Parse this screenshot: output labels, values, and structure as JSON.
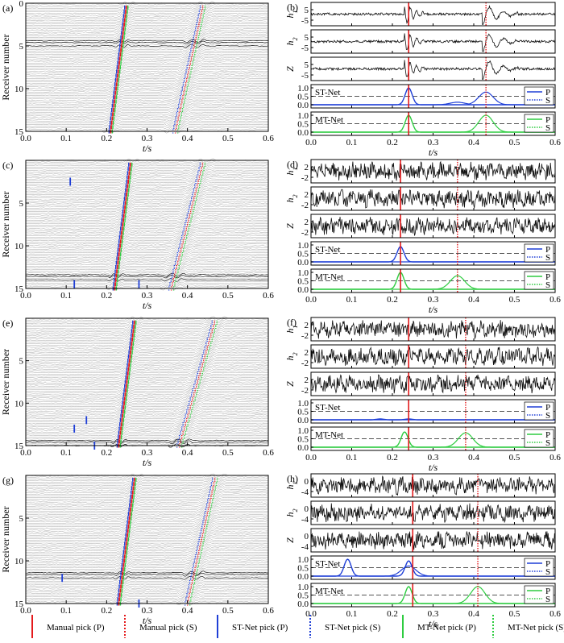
{
  "colors": {
    "manual": "#e41a1c",
    "st": "#1f3fd6",
    "mt": "#2ecc40",
    "threshold": "#555555"
  },
  "legend": [
    {
      "label": "Manual pick (P)",
      "color": "#e41a1c",
      "style": "solid"
    },
    {
      "label": "Manual pick (S)",
      "color": "#e41a1c",
      "style": "dotted"
    },
    {
      "label": "ST-Net pick (P)",
      "color": "#1f3fd6",
      "style": "solid"
    },
    {
      "label": "ST-Net pick (S)",
      "color": "#1f3fd6",
      "style": "dotted"
    },
    {
      "label": "MT-Net pick (P)",
      "color": "#2ecc40",
      "style": "solid"
    },
    {
      "label": "MT-Net pick (S)",
      "color": "#2ecc40",
      "style": "dotted"
    }
  ],
  "chart_data": [
    {
      "panel": "(a)",
      "type": "line",
      "xlabel": "t/s",
      "ylabel": "Receiver number",
      "xlim": [
        0,
        0.6
      ],
      "ylim": [
        15,
        0
      ],
      "xticks": [
        "0.0",
        "0.1",
        "0.2",
        "0.3",
        "0.4",
        "0.5",
        "0.6"
      ],
      "yticks": [
        "0",
        "5",
        "10",
        "15"
      ],
      "receivers": 15,
      "highlight_receivers": [
        4.5,
        5
      ],
      "p_arrival": {
        "top": 0.25,
        "bottom": 0.21
      },
      "s_arrival": {
        "top": 0.44,
        "bottom": 0.37
      },
      "outlier_p": []
    },
    {
      "panel": "(b)",
      "type": "line",
      "xlim": [
        0,
        0.6
      ],
      "xticks": [
        "0.0",
        "0.1",
        "0.2",
        "0.3",
        "0.4",
        "0.5",
        "0.6"
      ],
      "channels": [
        {
          "label": "h1",
          "yticks": [
            "5",
            "-5"
          ]
        },
        {
          "label": "h2",
          "yticks": [
            "5",
            "-5"
          ]
        },
        {
          "label": "Z",
          "yticks": [
            "5",
            "-5"
          ]
        }
      ],
      "xlabel": "t/s",
      "manual_p": 0.24,
      "manual_s": 0.43,
      "st_net": {
        "label": "ST-Net",
        "p_peaks": [
          [
            0.24,
            1.0
          ]
        ],
        "s_peaks": [
          [
            0.43,
            0.75
          ],
          [
            0.36,
            0.15
          ]
        ]
      },
      "mt_net": {
        "label": "MT-Net",
        "p_peaks": [
          [
            0.24,
            1.0
          ]
        ],
        "s_peaks": [
          [
            0.43,
            1.0
          ]
        ]
      },
      "prob_yticks": [
        "1.0",
        "0.5",
        "0.0"
      ]
    },
    {
      "panel": "(c)",
      "type": "line",
      "xlabel": "t/s",
      "ylabel": "Receiver number",
      "xlim": [
        0,
        0.6
      ],
      "ylim": [
        15,
        0
      ],
      "xticks": [
        "0.0",
        "0.1",
        "0.2",
        "0.3",
        "0.4",
        "0.5",
        "0.6"
      ],
      "yticks": [
        "5",
        "10",
        "15"
      ],
      "receivers": 15,
      "highlight_receivers": [
        13.5,
        14
      ],
      "p_arrival": {
        "top": 0.26,
        "bottom": 0.22
      },
      "s_arrival": {
        "top": 0.44,
        "bottom": 0.36
      },
      "outlier_p": [
        [
          0.11,
          2.5
        ],
        [
          0.12,
          14.5
        ],
        [
          0.28,
          14.5
        ]
      ]
    },
    {
      "panel": "(d)",
      "type": "line",
      "xlim": [
        0,
        0.6
      ],
      "xticks": [
        "0.0",
        "0.1",
        "0.2",
        "0.3",
        "0.4",
        "0.5",
        "0.6"
      ],
      "channels": [
        {
          "label": "h1",
          "yticks": [
            "2",
            "-2"
          ]
        },
        {
          "label": "h2",
          "yticks": [
            "2",
            "-2"
          ]
        },
        {
          "label": "Z",
          "yticks": [
            "2",
            "-2"
          ]
        }
      ],
      "xlabel": "t/s",
      "manual_p": 0.22,
      "manual_s": 0.36,
      "st_net": {
        "label": "ST-Net",
        "p_peaks": [
          [
            0.22,
            0.9
          ]
        ],
        "s_peaks": []
      },
      "mt_net": {
        "label": "MT-Net",
        "p_peaks": [
          [
            0.22,
            1.0
          ]
        ],
        "s_peaks": [
          [
            0.36,
            0.8
          ]
        ]
      },
      "prob_yticks": [
        "1.0",
        "0.5",
        "0.0"
      ]
    },
    {
      "panel": "(e)",
      "type": "line",
      "xlabel": "t/s",
      "ylabel": "Receiver number",
      "xlim": [
        0,
        0.6
      ],
      "ylim": [
        15,
        0
      ],
      "xticks": [
        "0.0",
        "0.1",
        "0.2",
        "0.3",
        "0.4",
        "0.5",
        "0.6"
      ],
      "yticks": [
        "5",
        "10",
        "15"
      ],
      "receivers": 15,
      "highlight_receivers": [
        14.5,
        15
      ],
      "p_arrival": {
        "top": 0.27,
        "bottom": 0.23
      },
      "s_arrival": {
        "top": 0.47,
        "bottom": 0.38
      },
      "outlier_p": [
        [
          0.12,
          13
        ],
        [
          0.15,
          12
        ],
        [
          0.17,
          15
        ]
      ]
    },
    {
      "panel": "(f)",
      "type": "line",
      "xlim": [
        0,
        0.6
      ],
      "xticks": [
        "0.0",
        "0.1",
        "0.2",
        "0.3",
        "0.4",
        "0.5",
        "0.6"
      ],
      "channels": [
        {
          "label": "h1",
          "yticks": [
            "2",
            "-2"
          ]
        },
        {
          "label": "h2",
          "yticks": [
            "2",
            "-2"
          ]
        },
        {
          "label": "Z",
          "yticks": [
            "2",
            "-2"
          ]
        }
      ],
      "xlabel": "t/s",
      "manual_p": 0.24,
      "manual_s": 0.38,
      "st_net": {
        "label": "ST-Net",
        "p_peaks": [
          [
            0.17,
            0.05
          ],
          [
            0.24,
            0.05
          ]
        ],
        "s_peaks": []
      },
      "mt_net": {
        "label": "MT-Net",
        "p_peaks": [
          [
            0.23,
            0.9
          ]
        ],
        "s_peaks": [
          [
            0.38,
            0.85
          ]
        ]
      },
      "prob_yticks": [
        "1.0",
        "0.5",
        "0.0"
      ]
    },
    {
      "panel": "(g)",
      "type": "line",
      "xlabel": "t/s",
      "ylabel": "Receiver number",
      "xlim": [
        0,
        0.6
      ],
      "ylim": [
        15,
        0
      ],
      "xticks": [
        "0.0",
        "0.1",
        "0.2",
        "0.3",
        "0.4",
        "0.5",
        "0.6"
      ],
      "yticks": [
        "5",
        "10",
        "15"
      ],
      "receivers": 15,
      "highlight_receivers": [
        11.5,
        12
      ],
      "p_arrival": {
        "top": 0.27,
        "bottom": 0.23
      },
      "s_arrival": {
        "top": 0.47,
        "bottom": 0.4
      },
      "outlier_p": [
        [
          0.09,
          12
        ],
        [
          0.28,
          15
        ]
      ]
    },
    {
      "panel": "(h)",
      "type": "line",
      "xlim": [
        0,
        0.6
      ],
      "xticks": [
        "0.0",
        "0.1",
        "0.2",
        "0.3",
        "0.4",
        "0.5",
        "0.6"
      ],
      "channels": [
        {
          "label": "h1",
          "yticks": [
            "0",
            "-4"
          ]
        },
        {
          "label": "h2",
          "yticks": [
            "0",
            "-4"
          ]
        },
        {
          "label": "Z",
          "yticks": [
            "0",
            "-4"
          ]
        }
      ],
      "xlabel": "t/s",
      "manual_p": 0.25,
      "manual_s": 0.41,
      "st_net": {
        "label": "ST-Net",
        "p_peaks": [
          [
            0.09,
            1.0
          ],
          [
            0.24,
            0.9
          ]
        ],
        "s_peaks": [
          [
            0.24,
            0.6
          ]
        ]
      },
      "mt_net": {
        "label": "MT-Net",
        "p_peaks": [
          [
            0.24,
            1.0
          ]
        ],
        "s_peaks": [
          [
            0.41,
            1.0
          ]
        ]
      },
      "prob_yticks": [
        "1.0",
        "0.5",
        "0.0"
      ]
    }
  ]
}
